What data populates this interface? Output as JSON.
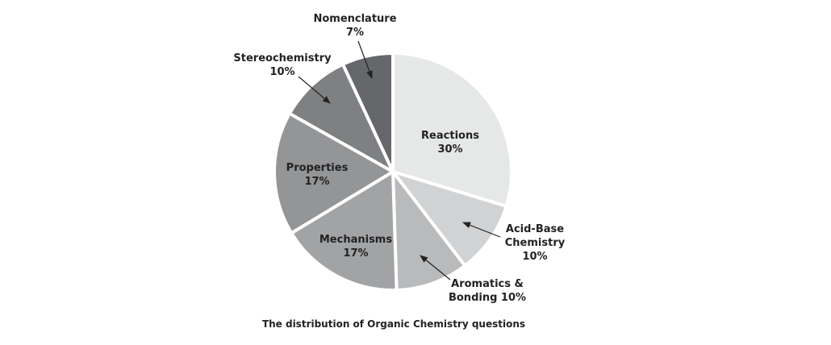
{
  "chart_data": {
    "type": "pie",
    "caption": "The distribution of Organic Chemistry questions",
    "slices": [
      {
        "label": [
          "Reactions",
          "30%"
        ],
        "value": 30,
        "color": "#e6e7e7"
      },
      {
        "label": [
          "Acid-Base",
          "Chemistry",
          "10%"
        ],
        "value": 10,
        "color": "#d1d2d3"
      },
      {
        "label": [
          "Aromatics &",
          "Bonding 10%"
        ],
        "value": 10,
        "color": "#b9babb"
      },
      {
        "label": [
          "Mechanisms",
          "17%"
        ],
        "value": 17,
        "color": "#a2a3a5"
      },
      {
        "label": [
          "Properties",
          "17%"
        ],
        "value": 17,
        "color": "#949597"
      },
      {
        "label": [
          "Stereochemistry",
          "10%"
        ],
        "value": 10,
        "color": "#7f8082"
      },
      {
        "label": [
          "Nomenclature",
          "7%"
        ],
        "value": 7,
        "color": "#66676a"
      }
    ],
    "legend": "none"
  }
}
